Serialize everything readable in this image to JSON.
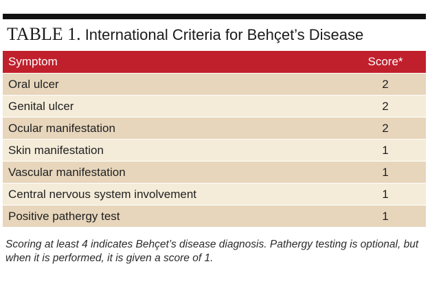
{
  "table": {
    "number": "TABLE 1.",
    "title": "International Criteria for Behçet’s Disease",
    "headers": {
      "symptom": "Symptom",
      "score": "Score*"
    },
    "rows": [
      {
        "symptom": "Oral ulcer",
        "score": "2"
      },
      {
        "symptom": "Genital ulcer",
        "score": "2"
      },
      {
        "symptom": "Ocular manifestation",
        "score": "2"
      },
      {
        "symptom": "Skin manifestation",
        "score": "1"
      },
      {
        "symptom": "Vascular manifestation",
        "score": "1"
      },
      {
        "symptom": "Central nervous system involvement",
        "score": "1"
      },
      {
        "symptom": "Positive pathergy test",
        "score": "1"
      }
    ],
    "footnote": "Scoring at least 4 indicates Behçet’s disease diagnosis. Pathergy testing is optional, but when it is performed, it is given a score of 1."
  },
  "colors": {
    "header_bg": "#c0202c",
    "row_tan": "#e7d6bc",
    "row_cream": "#f4ecd9",
    "rule": "#111111"
  }
}
